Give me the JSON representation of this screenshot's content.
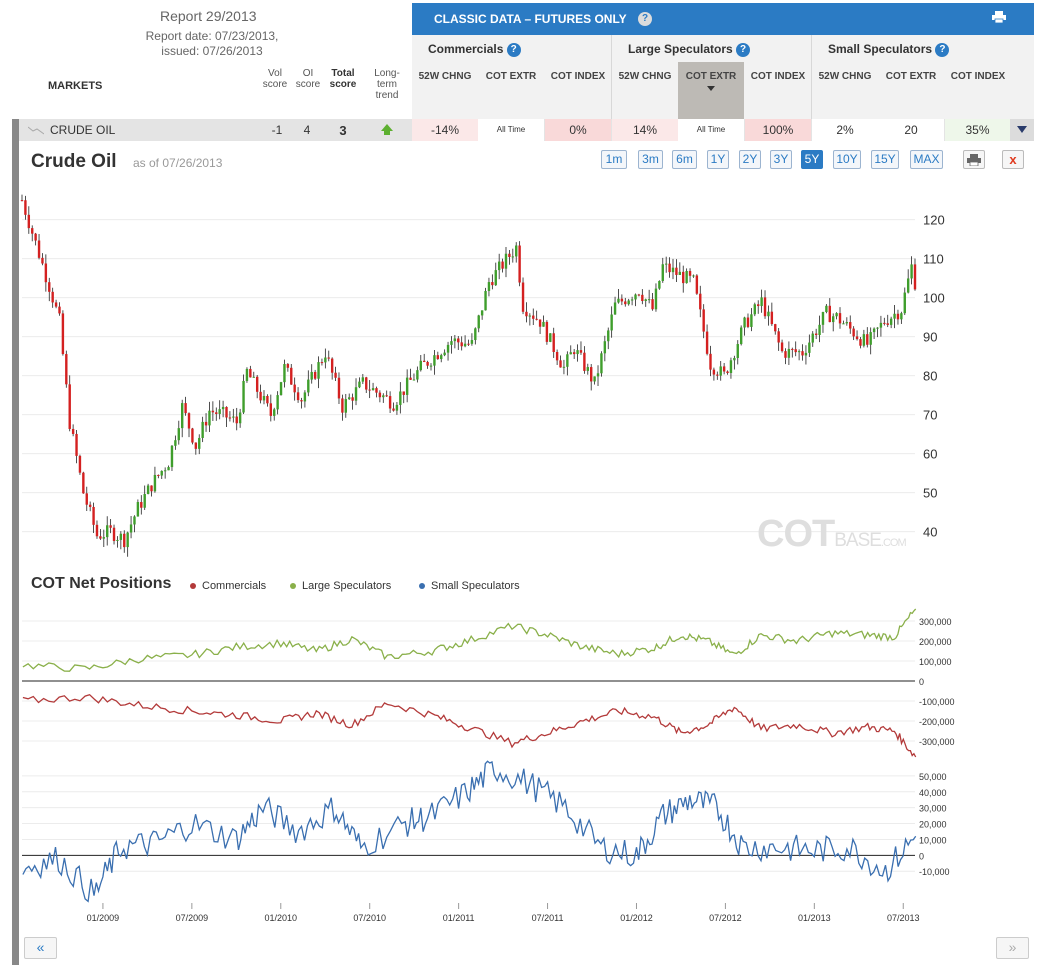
{
  "report": {
    "title": "Report 29/2013",
    "report_date": "Report date: 07/23/2013,",
    "issued": "issued: 07/26/2013"
  },
  "table": {
    "markets_header": "MARKETS",
    "col_vol": "Vol score",
    "col_oi": "OI score",
    "col_total": "Total score",
    "col_trend": "Long-term trend",
    "classic_title": "CLASSIC DATA – FUTURES ONLY",
    "groups": [
      {
        "name": "Commercials",
        "cols": [
          "52W CHNG",
          "COT EXTR",
          "COT INDEX"
        ]
      },
      {
        "name": "Large Speculators",
        "cols": [
          "52W CHNG",
          "COT EXTR",
          "COT INDEX"
        ]
      },
      {
        "name": "Small Speculators",
        "cols": [
          "52W CHNG",
          "COT EXTR",
          "COT INDEX"
        ]
      }
    ],
    "row": {
      "name": "CRUDE OIL",
      "vol": "-1",
      "oi": "4",
      "total": "3",
      "trend": "up",
      "cells": [
        {
          "text": "-14%",
          "bg": "#fbe8e8"
        },
        {
          "text": "All Time",
          "bg": "#ffffff",
          "small": true
        },
        {
          "text": "0%",
          "bg": "#f9d9d9"
        },
        {
          "text": "14%",
          "bg": "#fbe8e8"
        },
        {
          "text": "All Time",
          "bg": "#ffffff",
          "small": true
        },
        {
          "text": "100%",
          "bg": "#f9d9d9"
        },
        {
          "text": "2%",
          "bg": "#ffffff"
        },
        {
          "text": "20",
          "bg": "#ffffff"
        },
        {
          "text": "35%",
          "bg": "#eef7ea"
        }
      ]
    }
  },
  "chart_header": {
    "title": "Crude Oil",
    "as_of": "as of 07/26/2013",
    "ranges": [
      "1m",
      "3m",
      "6m",
      "1Y",
      "2Y",
      "3Y",
      "5Y",
      "10Y",
      "15Y",
      "MAX"
    ],
    "active_range": "5Y",
    "print_icon": "print-icon",
    "close_label": "x"
  },
  "watermark": {
    "cot": "COT",
    "base": "BASE",
    "com": ".COM"
  },
  "cot_section": {
    "title": "COT Net Positions",
    "legend": [
      {
        "name": "Commercials",
        "color": "#b33a3a"
      },
      {
        "name": "Large Speculators",
        "color": "#8ab04a"
      },
      {
        "name": "Small Speculators",
        "color": "#3a6fb0"
      }
    ]
  },
  "nav": {
    "prev": "«",
    "next": "»"
  },
  "colors": {
    "up": "#3f9e2c",
    "down": "#d42020",
    "accent": "#2b7bc4"
  },
  "chart_data": [
    {
      "type": "candlestick",
      "title": "Crude Oil",
      "ylabel": "",
      "ylim": [
        34,
        124
      ],
      "yticks": [
        40,
        50,
        60,
        70,
        80,
        90,
        100,
        110,
        120
      ],
      "x_start": "2008-07-18",
      "x_end": "2013-07-26",
      "anchors": [
        [
          "2008-07-18",
          125
        ],
        [
          "2008-08-15",
          114
        ],
        [
          "2008-09-12",
          103
        ],
        [
          "2008-10-03",
          94
        ],
        [
          "2008-10-24",
          68
        ],
        [
          "2008-11-21",
          50
        ],
        [
          "2008-12-19",
          39
        ],
        [
          "2009-01-16",
          40
        ],
        [
          "2009-02-13",
          38
        ],
        [
          "2009-03-13",
          46
        ],
        [
          "2009-04-10",
          52
        ],
        [
          "2009-05-15",
          58
        ],
        [
          "2009-06-12",
          72
        ],
        [
          "2009-07-10",
          62
        ],
        [
          "2009-08-07",
          71
        ],
        [
          "2009-09-04",
          70
        ],
        [
          "2009-10-02",
          68
        ],
        [
          "2009-10-23",
          81
        ],
        [
          "2009-12-11",
          70
        ],
        [
          "2010-01-08",
          82
        ],
        [
          "2010-02-12",
          74
        ],
        [
          "2010-04-02",
          86
        ],
        [
          "2010-05-07",
          72
        ],
        [
          "2010-06-18",
          78
        ],
        [
          "2010-08-20",
          73
        ],
        [
          "2010-10-15",
          82
        ],
        [
          "2010-12-17",
          89
        ],
        [
          "2011-01-28",
          88
        ],
        [
          "2011-03-04",
          104
        ],
        [
          "2011-04-29",
          113
        ],
        [
          "2011-05-13",
          98
        ],
        [
          "2011-06-17",
          94
        ],
        [
          "2011-08-05",
          82
        ],
        [
          "2011-08-26",
          87
        ],
        [
          "2011-10-07",
          78
        ],
        [
          "2011-11-18",
          98
        ],
        [
          "2012-01-06",
          102
        ],
        [
          "2012-02-03",
          97
        ],
        [
          "2012-02-24",
          108
        ],
        [
          "2012-04-27",
          104
        ],
        [
          "2012-06-01",
          83
        ],
        [
          "2012-06-29",
          80
        ],
        [
          "2012-08-10",
          93
        ],
        [
          "2012-09-14",
          99
        ],
        [
          "2012-10-26",
          86
        ],
        [
          "2012-12-07",
          86
        ],
        [
          "2013-01-25",
          96
        ],
        [
          "2013-02-15",
          95
        ],
        [
          "2013-04-19",
          88
        ],
        [
          "2013-05-24",
          94
        ],
        [
          "2013-06-28",
          97
        ],
        [
          "2013-07-19",
          108
        ],
        [
          "2013-07-26",
          104
        ]
      ]
    },
    {
      "type": "line",
      "title": "COT Net Positions",
      "ylim": [
        -380000,
        380000
      ],
      "yticks": [
        -300000,
        -200000,
        -100000,
        0,
        100000,
        200000,
        300000
      ],
      "series": [
        {
          "name": "Large Speculators",
          "color": "#8ab04a",
          "values": [
            [
              2008.55,
              80000
            ],
            [
              2008.9,
              60000
            ],
            [
              2009.2,
              110000
            ],
            [
              2009.5,
              130000
            ],
            [
              2009.75,
              170000
            ],
            [
              2010.0,
              190000
            ],
            [
              2010.2,
              150000
            ],
            [
              2010.4,
              210000
            ],
            [
              2010.6,
              120000
            ],
            [
              2010.85,
              150000
            ],
            [
              2011.05,
              200000
            ],
            [
              2011.3,
              275000
            ],
            [
              2011.5,
              230000
            ],
            [
              2011.7,
              170000
            ],
            [
              2011.9,
              135000
            ],
            [
              2012.1,
              165000
            ],
            [
              2012.25,
              230000
            ],
            [
              2012.4,
              200000
            ],
            [
              2012.55,
              130000
            ],
            [
              2012.7,
              230000
            ],
            [
              2012.9,
              200000
            ],
            [
              2013.1,
              240000
            ],
            [
              2013.3,
              230000
            ],
            [
              2013.45,
              220000
            ],
            [
              2013.57,
              360000
            ]
          ]
        },
        {
          "name": "Commercials",
          "color": "#b33a3a",
          "values": [
            [
              2008.55,
              -100000
            ],
            [
              2008.9,
              -80000
            ],
            [
              2009.2,
              -120000
            ],
            [
              2009.5,
              -150000
            ],
            [
              2009.75,
              -170000
            ],
            [
              2010.0,
              -200000
            ],
            [
              2010.2,
              -160000
            ],
            [
              2010.4,
              -220000
            ],
            [
              2010.6,
              -110000
            ],
            [
              2010.85,
              -170000
            ],
            [
              2011.05,
              -230000
            ],
            [
              2011.3,
              -310000
            ],
            [
              2011.5,
              -260000
            ],
            [
              2011.7,
              -200000
            ],
            [
              2011.9,
              -150000
            ],
            [
              2012.1,
              -180000
            ],
            [
              2012.25,
              -260000
            ],
            [
              2012.4,
              -220000
            ],
            [
              2012.55,
              -130000
            ],
            [
              2012.7,
              -240000
            ],
            [
              2012.9,
              -220000
            ],
            [
              2013.1,
              -260000
            ],
            [
              2013.3,
              -230000
            ],
            [
              2013.45,
              -250000
            ],
            [
              2013.57,
              -380000
            ]
          ]
        }
      ]
    },
    {
      "type": "line",
      "ylim": [
        -30000,
        60000
      ],
      "yticks": [
        -10000,
        0,
        10000,
        20000,
        30000,
        40000,
        50000
      ],
      "series": [
        {
          "name": "Small Speculators",
          "color": "#3a6fb0",
          "values": [
            [
              2008.55,
              -8000
            ],
            [
              2008.75,
              -2000
            ],
            [
              2008.95,
              -25000
            ],
            [
              2009.1,
              5000
            ],
            [
              2009.3,
              8000
            ],
            [
              2009.5,
              20000
            ],
            [
              2009.75,
              10000
            ],
            [
              2009.9,
              30000
            ],
            [
              2010.1,
              15000
            ],
            [
              2010.3,
              30000
            ],
            [
              2010.45,
              5000
            ],
            [
              2010.7,
              20000
            ],
            [
              2010.85,
              25000
            ],
            [
              2011.05,
              40000
            ],
            [
              2011.2,
              55000
            ],
            [
              2011.4,
              45000
            ],
            [
              2011.6,
              30000
            ],
            [
              2011.8,
              5000
            ],
            [
              2012.0,
              0
            ],
            [
              2012.15,
              25000
            ],
            [
              2012.3,
              35000
            ],
            [
              2012.45,
              30000
            ],
            [
              2012.6,
              5000
            ],
            [
              2012.8,
              5000
            ],
            [
              2013.0,
              3000
            ],
            [
              2013.2,
              5000
            ],
            [
              2013.4,
              -10000
            ],
            [
              2013.57,
              12000
            ]
          ]
        }
      ]
    }
  ],
  "x_ticks": [
    "01/2009",
    "07/2009",
    "01/2010",
    "07/2010",
    "01/2011",
    "07/2011",
    "01/2012",
    "07/2012",
    "01/2013",
    "07/2013"
  ]
}
